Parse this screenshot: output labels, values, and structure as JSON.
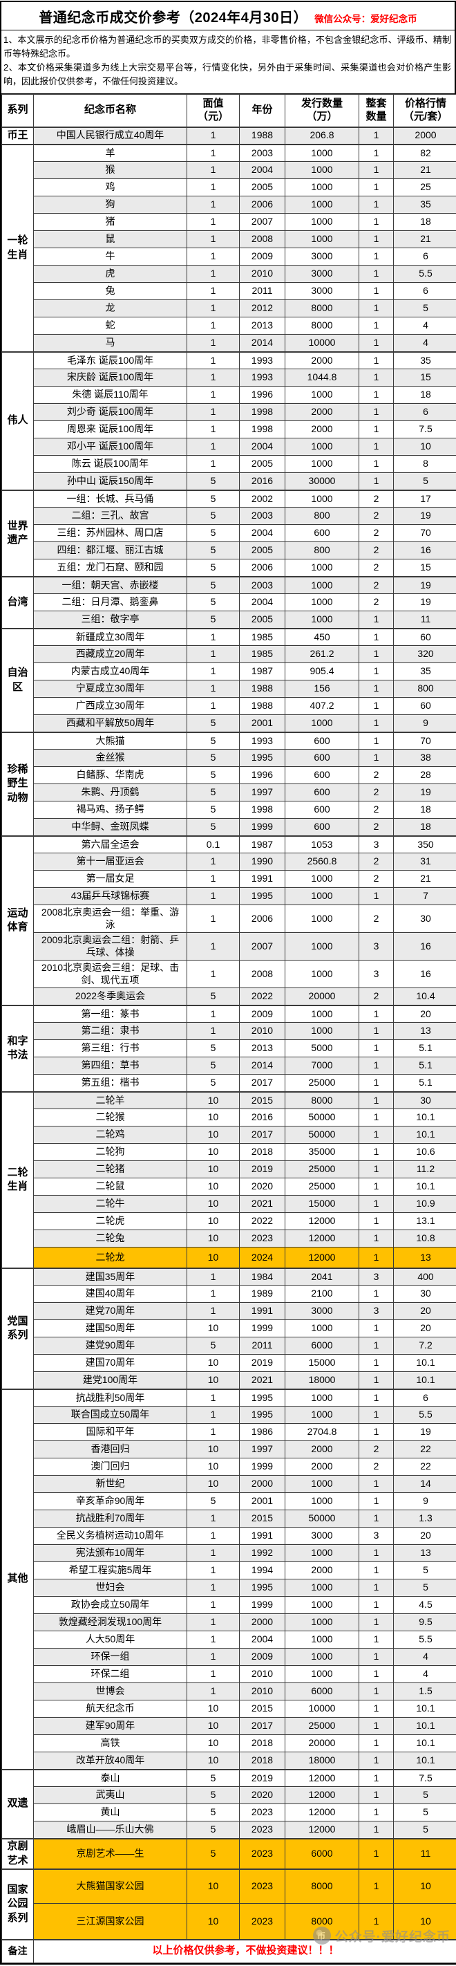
{
  "header": {
    "title": "普通纪念币成交价参考（2024年4月30日）",
    "wechat": "微信公众号：爱好纪念币",
    "notes": [
      "1、本文展示的纪念币价格为普通纪念币的买卖双方成交的价格，非零售价格，不包含金银纪念币、评级币、精制币等特殊纪念币。",
      "2、本文价格采集渠道多为线上大宗交易平台等，行情变化快，另外由于采集时间、采集渠道也会对价格产生影响，因此报价仅供参考，不做任何投资建议。"
    ]
  },
  "table": {
    "columns": [
      "系列",
      "纪念币名称",
      "面值\n（元）",
      "年份",
      "发行数量\n（万）",
      "整套\n数量",
      "价格行情\n（元/套）"
    ],
    "sections": [
      {
        "name": "币王",
        "rows": [
          {
            "n": "中国人民银行成立40周年",
            "fv": "1",
            "y": "1988",
            "q": "206.8",
            "s": "1",
            "p": "2000"
          }
        ]
      },
      {
        "name": "一轮生肖",
        "rows": [
          {
            "n": "羊",
            "fv": "1",
            "y": "2003",
            "q": "1000",
            "s": "1",
            "p": "82"
          },
          {
            "n": "猴",
            "fv": "1",
            "y": "2004",
            "q": "1000",
            "s": "1",
            "p": "21"
          },
          {
            "n": "鸡",
            "fv": "1",
            "y": "2005",
            "q": "1000",
            "s": "1",
            "p": "25"
          },
          {
            "n": "狗",
            "fv": "1",
            "y": "2006",
            "q": "1000",
            "s": "1",
            "p": "35"
          },
          {
            "n": "猪",
            "fv": "1",
            "y": "2007",
            "q": "1000",
            "s": "1",
            "p": "18"
          },
          {
            "n": "鼠",
            "fv": "1",
            "y": "2008",
            "q": "1000",
            "s": "1",
            "p": "21"
          },
          {
            "n": "牛",
            "fv": "1",
            "y": "2009",
            "q": "3000",
            "s": "1",
            "p": "6"
          },
          {
            "n": "虎",
            "fv": "1",
            "y": "2010",
            "q": "3000",
            "s": "1",
            "p": "5.5"
          },
          {
            "n": "兔",
            "fv": "1",
            "y": "2011",
            "q": "3000",
            "s": "1",
            "p": "6"
          },
          {
            "n": "龙",
            "fv": "1",
            "y": "2012",
            "q": "8000",
            "s": "1",
            "p": "5"
          },
          {
            "n": "蛇",
            "fv": "1",
            "y": "2013",
            "q": "8000",
            "s": "1",
            "p": "4"
          },
          {
            "n": "马",
            "fv": "1",
            "y": "2014",
            "q": "10000",
            "s": "1",
            "p": "4"
          }
        ]
      },
      {
        "name": "伟人",
        "rows": [
          {
            "n": "毛泽东 诞辰100周年",
            "fv": "1",
            "y": "1993",
            "q": "2000",
            "s": "1",
            "p": "35"
          },
          {
            "n": "宋庆龄 诞辰100周年",
            "fv": "1",
            "y": "1993",
            "q": "1044.8",
            "s": "1",
            "p": "15"
          },
          {
            "n": "朱德 诞辰110周年",
            "fv": "1",
            "y": "1996",
            "q": "1000",
            "s": "1",
            "p": "18"
          },
          {
            "n": "刘少奇 诞辰100周年",
            "fv": "1",
            "y": "1998",
            "q": "2000",
            "s": "1",
            "p": "6"
          },
          {
            "n": "周恩来 诞辰100周年",
            "fv": "1",
            "y": "1998",
            "q": "2000",
            "s": "1",
            "p": "7.5"
          },
          {
            "n": "邓小平 诞辰100周年",
            "fv": "1",
            "y": "2004",
            "q": "1000",
            "s": "1",
            "p": "10"
          },
          {
            "n": "陈云 诞辰100周年",
            "fv": "1",
            "y": "2005",
            "q": "1000",
            "s": "1",
            "p": "8"
          },
          {
            "n": "孙中山 诞辰150周年",
            "fv": "5",
            "y": "2016",
            "q": "30000",
            "s": "1",
            "p": "5"
          }
        ]
      },
      {
        "name": "世界遗产",
        "rows": [
          {
            "n": "一组：长城、兵马俑",
            "fv": "5",
            "y": "2002",
            "q": "1000",
            "s": "2",
            "p": "17"
          },
          {
            "n": "二组：三孔、故宫",
            "fv": "5",
            "y": "2003",
            "q": "800",
            "s": "2",
            "p": "19"
          },
          {
            "n": "三组：苏州园林、周口店",
            "fv": "5",
            "y": "2004",
            "q": "600",
            "s": "2",
            "p": "70"
          },
          {
            "n": "四组：都江堰、丽江古城",
            "fv": "5",
            "y": "2005",
            "q": "800",
            "s": "2",
            "p": "16"
          },
          {
            "n": "五组：龙门石窟、颐和园",
            "fv": "5",
            "y": "2006",
            "q": "1000",
            "s": "2",
            "p": "15"
          }
        ]
      },
      {
        "name": "台湾",
        "rows": [
          {
            "n": "一组：朝天宫、赤嵌楼",
            "fv": "5",
            "y": "2003",
            "q": "1000",
            "s": "2",
            "p": "19"
          },
          {
            "n": "二组：日月潭、鹅銮鼻",
            "fv": "5",
            "y": "2004",
            "q": "1000",
            "s": "2",
            "p": "19"
          },
          {
            "n": "三组：敬字亭",
            "fv": "5",
            "y": "2005",
            "q": "1000",
            "s": "1",
            "p": "11"
          }
        ]
      },
      {
        "name": "自治区",
        "rows": [
          {
            "n": "新疆成立30周年",
            "fv": "1",
            "y": "1985",
            "q": "450",
            "s": "1",
            "p": "60"
          },
          {
            "n": "西藏成立20周年",
            "fv": "1",
            "y": "1985",
            "q": "261.2",
            "s": "1",
            "p": "320"
          },
          {
            "n": "内蒙古成立40周年",
            "fv": "1",
            "y": "1987",
            "q": "905.4",
            "s": "1",
            "p": "35"
          },
          {
            "n": "宁夏成立30周年",
            "fv": "1",
            "y": "1988",
            "q": "156",
            "s": "1",
            "p": "800"
          },
          {
            "n": "广西成立30周年",
            "fv": "1",
            "y": "1988",
            "q": "407.2",
            "s": "1",
            "p": "60"
          },
          {
            "n": "西藏和平解放50周年",
            "fv": "5",
            "y": "2001",
            "q": "1000",
            "s": "1",
            "p": "9"
          }
        ]
      },
      {
        "name": "珍稀野生动物",
        "rows": [
          {
            "n": "大熊猫",
            "fv": "5",
            "y": "1993",
            "q": "600",
            "s": "1",
            "p": "70"
          },
          {
            "n": "金丝猴",
            "fv": "5",
            "y": "1995",
            "q": "600",
            "s": "1",
            "p": "38"
          },
          {
            "n": "白鳍豚、华南虎",
            "fv": "5",
            "y": "1996",
            "q": "600",
            "s": "2",
            "p": "28"
          },
          {
            "n": "朱鹮、丹顶鹤",
            "fv": "5",
            "y": "1997",
            "q": "600",
            "s": "2",
            "p": "19"
          },
          {
            "n": "褐马鸡、扬子鳄",
            "fv": "5",
            "y": "1998",
            "q": "600",
            "s": "2",
            "p": "18"
          },
          {
            "n": "中华鲟、金斑凤蝶",
            "fv": "5",
            "y": "1999",
            "q": "600",
            "s": "2",
            "p": "18"
          }
        ]
      },
      {
        "name": "运动体育",
        "rows": [
          {
            "n": "第六届全运会",
            "fv": "0.1",
            "y": "1987",
            "q": "1053",
            "s": "3",
            "p": "350"
          },
          {
            "n": "第十一届亚运会",
            "fv": "1",
            "y": "1990",
            "q": "2560.8",
            "s": "2",
            "p": "31"
          },
          {
            "n": "第一届女足",
            "fv": "1",
            "y": "1991",
            "q": "1000",
            "s": "2",
            "p": "21"
          },
          {
            "n": "43届乒乓球锦标赛",
            "fv": "1",
            "y": "1995",
            "q": "1000",
            "s": "1",
            "p": "7"
          },
          {
            "n": "2008北京奥运会一组：举重、游泳",
            "fv": "1",
            "y": "2006",
            "q": "1000",
            "s": "2",
            "p": "30"
          },
          {
            "n": "2009北京奥运会二组：射箭、乒乓球、体操",
            "fv": "1",
            "y": "2007",
            "q": "1000",
            "s": "3",
            "p": "16"
          },
          {
            "n": "2010北京奥运会三组：足球、击剑、现代五项",
            "fv": "1",
            "y": "2008",
            "q": "1000",
            "s": "3",
            "p": "16"
          },
          {
            "n": "2022冬季奥运会",
            "fv": "5",
            "y": "2022",
            "q": "20000",
            "s": "2",
            "p": "10.4"
          }
        ]
      },
      {
        "name": "和字书法",
        "rows": [
          {
            "n": "第一组：篆书",
            "fv": "1",
            "y": "2009",
            "q": "1000",
            "s": "1",
            "p": "20"
          },
          {
            "n": "第二组：隶书",
            "fv": "1",
            "y": "2010",
            "q": "1000",
            "s": "1",
            "p": "13"
          },
          {
            "n": "第三组：行书",
            "fv": "5",
            "y": "2013",
            "q": "5000",
            "s": "1",
            "p": "5.1"
          },
          {
            "n": "第四组：草书",
            "fv": "5",
            "y": "2014",
            "q": "7000",
            "s": "1",
            "p": "5.1"
          },
          {
            "n": "第五组：楷书",
            "fv": "5",
            "y": "2017",
            "q": "25000",
            "s": "1",
            "p": "5.1"
          }
        ]
      },
      {
        "name": "二轮生肖",
        "rows": [
          {
            "n": "二轮羊",
            "fv": "10",
            "y": "2015",
            "q": "8000",
            "s": "1",
            "p": "30"
          },
          {
            "n": "二轮猴",
            "fv": "10",
            "y": "2016",
            "q": "50000",
            "s": "1",
            "p": "10.1"
          },
          {
            "n": "二轮鸡",
            "fv": "10",
            "y": "2017",
            "q": "50000",
            "s": "1",
            "p": "10.1"
          },
          {
            "n": "二轮狗",
            "fv": "10",
            "y": "2018",
            "q": "35000",
            "s": "1",
            "p": "10.6"
          },
          {
            "n": "二轮猪",
            "fv": "10",
            "y": "2019",
            "q": "25000",
            "s": "1",
            "p": "11.2"
          },
          {
            "n": "二轮鼠",
            "fv": "10",
            "y": "2020",
            "q": "25000",
            "s": "1",
            "p": "10.1"
          },
          {
            "n": "二轮牛",
            "fv": "10",
            "y": "2021",
            "q": "15000",
            "s": "1",
            "p": "10.9"
          },
          {
            "n": "二轮虎",
            "fv": "10",
            "y": "2022",
            "q": "12000",
            "s": "1",
            "p": "13.1"
          },
          {
            "n": "二轮兔",
            "fv": "10",
            "y": "2023",
            "q": "12000",
            "s": "1",
            "p": "10.8"
          },
          {
            "n": "二轮龙",
            "fv": "10",
            "y": "2024",
            "q": "12000",
            "s": "1",
            "p": "13",
            "hl": true,
            "h": 30
          }
        ]
      },
      {
        "name": "党国系列",
        "rows": [
          {
            "n": "建国35周年",
            "fv": "1",
            "y": "1984",
            "q": "2041",
            "s": "3",
            "p": "400"
          },
          {
            "n": "建国40周年",
            "fv": "1",
            "y": "1989",
            "q": "2100",
            "s": "1",
            "p": "30"
          },
          {
            "n": "建党70周年",
            "fv": "1",
            "y": "1991",
            "q": "3000",
            "s": "3",
            "p": "20"
          },
          {
            "n": "建国50周年",
            "fv": "10",
            "y": "1999",
            "q": "1000",
            "s": "1",
            "p": "20"
          },
          {
            "n": "建党90周年",
            "fv": "5",
            "y": "2011",
            "q": "6000",
            "s": "1",
            "p": "7.2"
          },
          {
            "n": "建国70周年",
            "fv": "10",
            "y": "2019",
            "q": "15000",
            "s": "1",
            "p": "10.1"
          },
          {
            "n": "建党100周年",
            "fv": "10",
            "y": "2021",
            "q": "18000",
            "s": "1",
            "p": "10.1"
          }
        ]
      },
      {
        "name": "其他",
        "rows": [
          {
            "n": "抗战胜利50周年",
            "fv": "1",
            "y": "1995",
            "q": "1000",
            "s": "1",
            "p": "6"
          },
          {
            "n": "联合国成立50周年",
            "fv": "1",
            "y": "1995",
            "q": "1000",
            "s": "1",
            "p": "5.5"
          },
          {
            "n": "国际和平年",
            "fv": "1",
            "y": "1986",
            "q": "2704.8",
            "s": "1",
            "p": "19"
          },
          {
            "n": "香港回归",
            "fv": "10",
            "y": "1997",
            "q": "2000",
            "s": "2",
            "p": "22"
          },
          {
            "n": "澳门回归",
            "fv": "10",
            "y": "1999",
            "q": "2000",
            "s": "2",
            "p": "22"
          },
          {
            "n": "新世纪",
            "fv": "10",
            "y": "2000",
            "q": "1000",
            "s": "1",
            "p": "14"
          },
          {
            "n": "辛亥革命90周年",
            "fv": "5",
            "y": "2001",
            "q": "1000",
            "s": "1",
            "p": "9"
          },
          {
            "n": "抗战胜利70周年",
            "fv": "1",
            "y": "2015",
            "q": "50000",
            "s": "1",
            "p": "1.3"
          },
          {
            "n": "全民义务植树运动10周年",
            "fv": "1",
            "y": "1991",
            "q": "3000",
            "s": "3",
            "p": "20"
          },
          {
            "n": "宪法颁布10周年",
            "fv": "1",
            "y": "1992",
            "q": "1000",
            "s": "1",
            "p": "13"
          },
          {
            "n": "希望工程实施5周年",
            "fv": "1",
            "y": "1994",
            "q": "2000",
            "s": "1",
            "p": "5"
          },
          {
            "n": "世妇会",
            "fv": "1",
            "y": "1995",
            "q": "1000",
            "s": "1",
            "p": "5"
          },
          {
            "n": "政协会成立50周年",
            "fv": "1",
            "y": "1999",
            "q": "1000",
            "s": "1",
            "p": "4.5"
          },
          {
            "n": "敦煌藏经洞发现100周年",
            "fv": "1",
            "y": "2000",
            "q": "1000",
            "s": "1",
            "p": "9.5"
          },
          {
            "n": "人大50周年",
            "fv": "1",
            "y": "2004",
            "q": "1000",
            "s": "1",
            "p": "5.5"
          },
          {
            "n": "环保一组",
            "fv": "1",
            "y": "2009",
            "q": "1000",
            "s": "1",
            "p": "4"
          },
          {
            "n": "环保二组",
            "fv": "1",
            "y": "2010",
            "q": "1000",
            "s": "1",
            "p": "4"
          },
          {
            "n": "世博会",
            "fv": "1",
            "y": "2010",
            "q": "6000",
            "s": "1",
            "p": "1.5"
          },
          {
            "n": "航天纪念币",
            "fv": "10",
            "y": "2015",
            "q": "10000",
            "s": "1",
            "p": "10.1"
          },
          {
            "n": "建军90周年",
            "fv": "10",
            "y": "2017",
            "q": "25000",
            "s": "1",
            "p": "10.1"
          },
          {
            "n": "高铁",
            "fv": "10",
            "y": "2018",
            "q": "20000",
            "s": "1",
            "p": "10.1"
          },
          {
            "n": "改革开放40周年",
            "fv": "10",
            "y": "2018",
            "q": "18000",
            "s": "1",
            "p": "10.1"
          }
        ]
      },
      {
        "name": "双遗",
        "rows": [
          {
            "n": "泰山",
            "fv": "5",
            "y": "2019",
            "q": "12000",
            "s": "1",
            "p": "7.5"
          },
          {
            "n": "武夷山",
            "fv": "5",
            "y": "2020",
            "q": "12000",
            "s": "1",
            "p": "5"
          },
          {
            "n": "黄山",
            "fv": "5",
            "y": "2023",
            "q": "12000",
            "s": "1",
            "p": "5"
          },
          {
            "n": "峨眉山——乐山大佛",
            "fv": "5",
            "y": "2023",
            "q": "12000",
            "s": "1",
            "p": "5"
          }
        ]
      },
      {
        "name": "京剧艺术",
        "rows": [
          {
            "n": "京剧艺术——生",
            "fv": "5",
            "y": "2023",
            "q": "6000",
            "s": "1",
            "p": "11",
            "hl": true,
            "h": 44
          }
        ]
      },
      {
        "name": "国家公园系列",
        "rows": [
          {
            "n": "大熊猫国家公园",
            "fv": "10",
            "y": "2023",
            "q": "8000",
            "s": "1",
            "p": "10",
            "hl": true,
            "h": 50
          },
          {
            "n": "三江源国家公园",
            "fv": "10",
            "y": "2023",
            "q": "8000",
            "s": "1",
            "p": "10",
            "hl": true,
            "h": 52
          }
        ]
      }
    ]
  },
  "footer": {
    "label": "备注",
    "text": "以上价格仅供参考，不做投资建议！！！"
  },
  "watermark": {
    "logo": "币",
    "text": "公众号·爱好纪念币"
  },
  "colors": {
    "highlight": "#FFC000",
    "stripe": "#EAEAEA",
    "accent_red": "#FF0000"
  }
}
